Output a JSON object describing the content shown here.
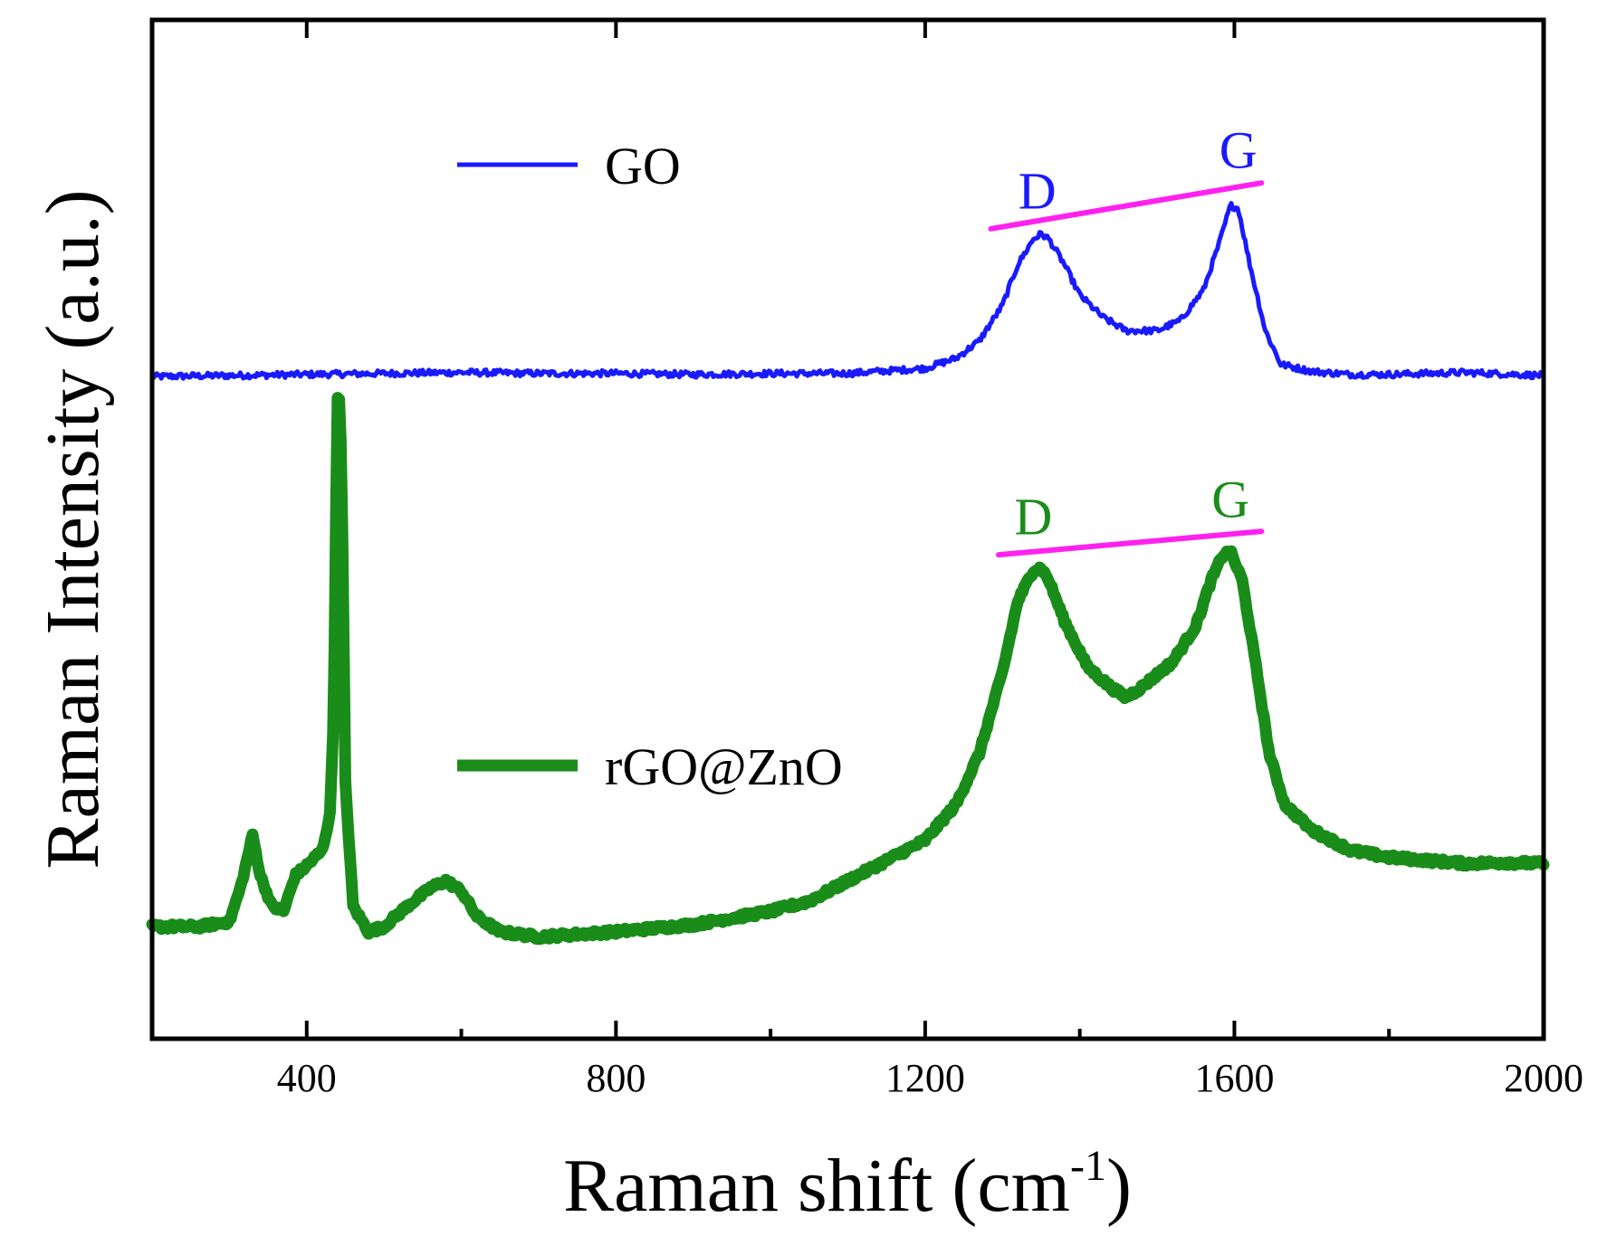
{
  "chart_data": {
    "type": "line",
    "title": "",
    "xlabel": "Raman shift (cm",
    "xlabel_sup": "-1",
    "xlabel_close": ")",
    "ylabel": "Raman Intensity (a.u.)",
    "xlim": [
      200,
      2000
    ],
    "ylim": [
      0,
      10
    ],
    "x_ticks": [
      400,
      800,
      1200,
      1600,
      2000
    ],
    "x_minor_ticks": [
      600,
      1000,
      1400,
      1800
    ],
    "y_ticks_shown": false,
    "grid": false,
    "legend_position": "inside-left",
    "series": [
      {
        "name": "GO",
        "color": "#1a1aff",
        "points": [
          [
            200,
            6.5
          ],
          [
            300,
            6.51
          ],
          [
            400,
            6.52
          ],
          [
            500,
            6.53
          ],
          [
            600,
            6.54
          ],
          [
            700,
            6.53
          ],
          [
            800,
            6.53
          ],
          [
            900,
            6.52
          ],
          [
            1000,
            6.53
          ],
          [
            1100,
            6.53
          ],
          [
            1200,
            6.58
          ],
          [
            1240,
            6.68
          ],
          [
            1270,
            6.85
          ],
          [
            1300,
            7.2
          ],
          [
            1320,
            7.6
          ],
          [
            1340,
            7.85
          ],
          [
            1350,
            7.9
          ],
          [
            1360,
            7.85
          ],
          [
            1380,
            7.6
          ],
          [
            1400,
            7.3
          ],
          [
            1430,
            7.08
          ],
          [
            1460,
            6.95
          ],
          [
            1500,
            6.95
          ],
          [
            1530,
            7.05
          ],
          [
            1560,
            7.35
          ],
          [
            1580,
            7.8
          ],
          [
            1595,
            8.18
          ],
          [
            1605,
            8.15
          ],
          [
            1620,
            7.6
          ],
          [
            1640,
            6.95
          ],
          [
            1660,
            6.62
          ],
          [
            1700,
            6.55
          ],
          [
            1750,
            6.52
          ],
          [
            1800,
            6.52
          ],
          [
            1900,
            6.54
          ],
          [
            2000,
            6.51
          ]
        ]
      },
      {
        "name": "rGO@ZnO",
        "color": "#1a8c1a",
        "points": [
          [
            200,
            1.1
          ],
          [
            260,
            1.1
          ],
          [
            300,
            1.15
          ],
          [
            315,
            1.5
          ],
          [
            330,
            2.0
          ],
          [
            340,
            1.6
          ],
          [
            355,
            1.3
          ],
          [
            370,
            1.25
          ],
          [
            385,
            1.6
          ],
          [
            400,
            1.7
          ],
          [
            420,
            1.85
          ],
          [
            430,
            2.2
          ],
          [
            435,
            3.2
          ],
          [
            438,
            5.2
          ],
          [
            440,
            6.3
          ],
          [
            443,
            6.3
          ],
          [
            446,
            5.0
          ],
          [
            450,
            2.5
          ],
          [
            460,
            1.3
          ],
          [
            480,
            1.05
          ],
          [
            500,
            1.1
          ],
          [
            530,
            1.3
          ],
          [
            560,
            1.48
          ],
          [
            580,
            1.55
          ],
          [
            600,
            1.45
          ],
          [
            620,
            1.2
          ],
          [
            650,
            1.05
          ],
          [
            700,
            1.0
          ],
          [
            800,
            1.05
          ],
          [
            900,
            1.12
          ],
          [
            1000,
            1.25
          ],
          [
            1050,
            1.35
          ],
          [
            1100,
            1.55
          ],
          [
            1150,
            1.75
          ],
          [
            1200,
            1.95
          ],
          [
            1240,
            2.3
          ],
          [
            1270,
            2.8
          ],
          [
            1300,
            3.6
          ],
          [
            1320,
            4.3
          ],
          [
            1340,
            4.6
          ],
          [
            1350,
            4.62
          ],
          [
            1360,
            4.5
          ],
          [
            1380,
            4.1
          ],
          [
            1410,
            3.65
          ],
          [
            1440,
            3.45
          ],
          [
            1460,
            3.35
          ],
          [
            1480,
            3.45
          ],
          [
            1520,
            3.7
          ],
          [
            1550,
            4.05
          ],
          [
            1570,
            4.5
          ],
          [
            1585,
            4.75
          ],
          [
            1595,
            4.78
          ],
          [
            1610,
            4.5
          ],
          [
            1625,
            3.8
          ],
          [
            1645,
            2.8
          ],
          [
            1665,
            2.3
          ],
          [
            1700,
            2.05
          ],
          [
            1750,
            1.85
          ],
          [
            1800,
            1.78
          ],
          [
            1850,
            1.75
          ],
          [
            1900,
            1.72
          ],
          [
            1950,
            1.73
          ],
          [
            2000,
            1.72
          ]
        ]
      }
    ],
    "annotations": [
      {
        "text": "D",
        "x": 1345,
        "y": 8.15,
        "color": "#1a1aff"
      },
      {
        "text": "G",
        "x": 1605,
        "y": 8.55,
        "color": "#1a1aff"
      },
      {
        "text": "D",
        "x": 1340,
        "y": 4.95,
        "color": "#1a8c1a"
      },
      {
        "text": "G",
        "x": 1595,
        "y": 5.12,
        "color": "#1a8c1a"
      }
    ],
    "reference_lines": [
      {
        "color": "#ff22ee",
        "from": [
          1285,
          7.95
        ],
        "to": [
          1635,
          8.4
        ]
      },
      {
        "color": "#ff22ee",
        "from": [
          1295,
          4.75
        ],
        "to": [
          1635,
          4.98
        ]
      }
    ]
  }
}
